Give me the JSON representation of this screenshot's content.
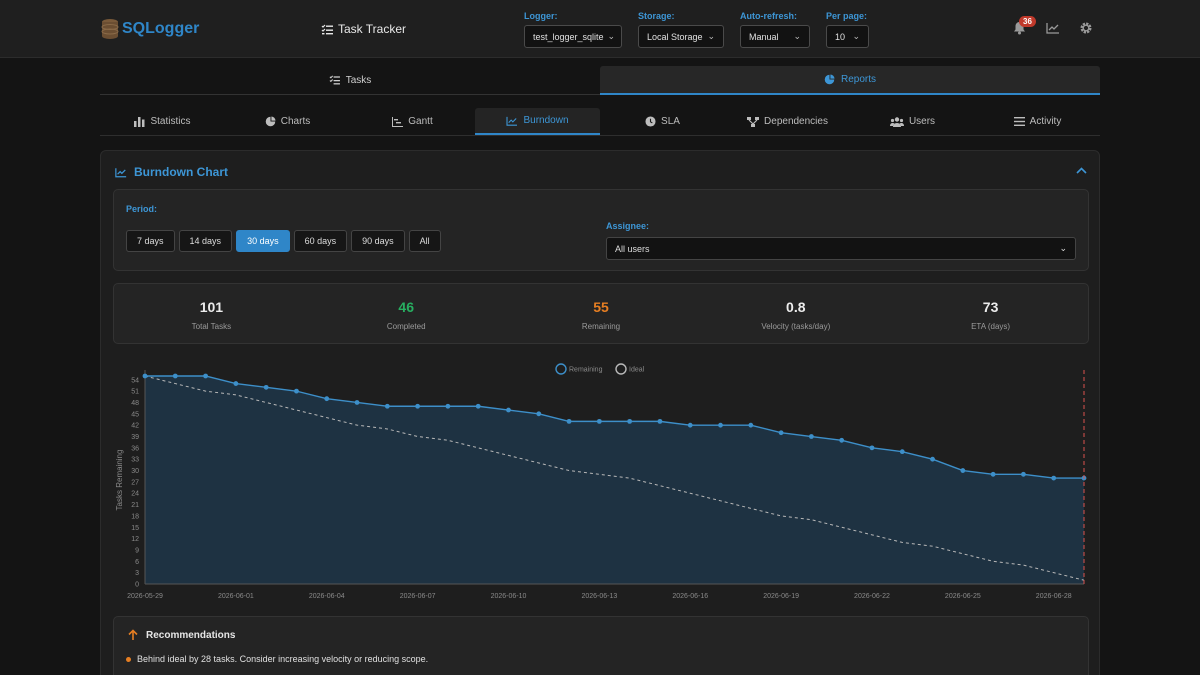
{
  "colors": {
    "accent": "#2f86c8",
    "completed": "#27ae60",
    "remaining": "#e67e22",
    "badge": "#c0392b",
    "today_line": "#d9534f"
  },
  "header": {
    "logo": "SQLogger",
    "title": "Task Tracker",
    "logger": {
      "label": "Logger:",
      "value": "test_logger_sqlite"
    },
    "storage": {
      "label": "Storage:",
      "value": "Local Storage"
    },
    "auto_refresh": {
      "label": "Auto-refresh:",
      "value": "Manual"
    },
    "per_page": {
      "label": "Per page:",
      "value": "10"
    },
    "notifications_count": "36",
    "icons": [
      "bell-icon",
      "chart-line-icon",
      "gear-icon"
    ]
  },
  "main_tabs": [
    {
      "label": "Tasks",
      "icon": "tasks-icon",
      "active": false
    },
    {
      "label": "Reports",
      "icon": "pie-chart-icon",
      "active": true
    }
  ],
  "sub_tabs": [
    {
      "label": "Statistics",
      "icon": "bar-chart-icon"
    },
    {
      "label": "Charts",
      "icon": "pie-chart-icon"
    },
    {
      "label": "Gantt",
      "icon": "gantt-icon"
    },
    {
      "label": "Burndown",
      "icon": "chart-line-icon",
      "active": true
    },
    {
      "label": "SLA",
      "icon": "clock-icon"
    },
    {
      "label": "Dependencies",
      "icon": "sitemap-icon"
    },
    {
      "label": "Users",
      "icon": "users-icon"
    },
    {
      "label": "Activity",
      "icon": "list-icon"
    }
  ],
  "panel": {
    "title": "Burndown Chart",
    "period_label": "Period:",
    "periods": [
      "7 days",
      "14 days",
      "30 days",
      "60 days",
      "90 days",
      "All"
    ],
    "active_period": "30 days",
    "assignee_label": "Assignee:",
    "assignee_value": "All users"
  },
  "stats": [
    {
      "value": "101",
      "label": "Total Tasks"
    },
    {
      "value": "46",
      "label": "Completed"
    },
    {
      "value": "55",
      "label": "Remaining"
    },
    {
      "value": "0.8",
      "label": "Velocity (tasks/day)"
    },
    {
      "value": "73",
      "label": "ETA (days)"
    }
  ],
  "chart_data": {
    "type": "line",
    "title": "",
    "xlabel": "",
    "ylabel": "Tasks Remaining",
    "ylim": [
      0,
      55
    ],
    "yticks": [
      0,
      3,
      6,
      9,
      12,
      15,
      18,
      21,
      24,
      27,
      30,
      33,
      36,
      39,
      42,
      45,
      48,
      51,
      54
    ],
    "xtick_labels": [
      "2026-05-29",
      "2026-06-01",
      "2026-06-04",
      "2026-06-07",
      "2026-06-10",
      "2026-06-13",
      "2026-06-16",
      "2026-06-19",
      "2026-06-22",
      "2026-06-25",
      "2026-06-28"
    ],
    "x": [
      "2026-05-29",
      "2026-05-30",
      "2026-05-31",
      "2026-06-01",
      "2026-06-02",
      "2026-06-03",
      "2026-06-04",
      "2026-06-05",
      "2026-06-06",
      "2026-06-07",
      "2026-06-08",
      "2026-06-09",
      "2026-06-10",
      "2026-06-11",
      "2026-06-12",
      "2026-06-13",
      "2026-06-14",
      "2026-06-15",
      "2026-06-16",
      "2026-06-17",
      "2026-06-18",
      "2026-06-19",
      "2026-06-20",
      "2026-06-21",
      "2026-06-22",
      "2026-06-23",
      "2026-06-24",
      "2026-06-25",
      "2026-06-26",
      "2026-06-27",
      "2026-06-28",
      "2026-06-29"
    ],
    "legend": "top-center",
    "series": [
      {
        "name": "Remaining",
        "style": "solid-filled",
        "values": [
          55,
          55,
          55,
          53,
          52,
          51,
          49,
          48,
          47,
          47,
          47,
          47,
          46,
          45,
          43,
          43,
          43,
          43,
          42,
          42,
          42,
          40,
          39,
          38,
          36,
          35,
          33,
          30,
          29,
          29,
          28,
          28
        ]
      },
      {
        "name": "Ideal",
        "style": "dashed",
        "values": [
          55,
          53,
          51,
          50,
          48,
          46,
          44,
          42,
          41,
          39,
          38,
          36,
          34,
          32,
          30,
          29,
          28,
          26,
          24,
          22,
          20,
          18,
          17,
          15,
          13,
          11,
          10,
          8,
          6,
          5,
          3,
          1
        ]
      }
    ],
    "today_marker": "2026-06-29",
    "grid": false
  },
  "recommendations": {
    "title": "Recommendations",
    "items": [
      "Behind ideal by 28 tasks. Consider increasing velocity or reducing scope."
    ]
  }
}
